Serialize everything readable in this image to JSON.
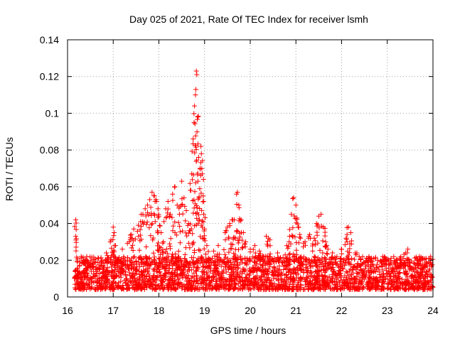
{
  "chart_data": {
    "type": "scatter",
    "title": "Day 025 of 2021, Rate Of TEC Index for receiver lsmh",
    "xlabel": "GPS time / hours",
    "ylabel": "ROTI / TECUs",
    "xlim": [
      16,
      24
    ],
    "ylim": [
      0,
      0.14
    ],
    "xticks": [
      16,
      17,
      18,
      19,
      20,
      21,
      22,
      23,
      24
    ],
    "xtick_labels": [
      "16",
      "17",
      "18",
      "19",
      "20",
      "21",
      "22",
      "23",
      "24"
    ],
    "yticks": [
      0,
      0.02,
      0.04,
      0.06,
      0.08,
      0.1,
      0.12,
      0.14
    ],
    "ytick_labels": [
      "0",
      "0.02",
      "0.04",
      "0.06",
      "0.08",
      "0.1",
      "0.12",
      "0.14"
    ],
    "grid": true,
    "marker": "+",
    "color": "#ff0000",
    "series": [
      {
        "name": "ROTI",
        "points": [
          [
            16.18,
            0.042
          ],
          [
            16.18,
            0.033
          ],
          [
            16.3,
            0.022
          ],
          [
            16.4,
            0.02
          ],
          [
            16.5,
            0.018
          ],
          [
            16.85,
            0.024
          ],
          [
            16.95,
            0.031
          ],
          [
            17.0,
            0.038
          ],
          [
            17.02,
            0.035
          ],
          [
            17.05,
            0.028
          ],
          [
            17.2,
            0.026
          ],
          [
            17.35,
            0.03
          ],
          [
            17.4,
            0.034
          ],
          [
            17.45,
            0.037
          ],
          [
            17.55,
            0.039
          ],
          [
            17.6,
            0.041
          ],
          [
            17.65,
            0.045
          ],
          [
            17.7,
            0.048
          ],
          [
            17.75,
            0.05
          ],
          [
            17.8,
            0.053
          ],
          [
            17.85,
            0.057
          ],
          [
            17.9,
            0.055
          ],
          [
            17.95,
            0.052
          ],
          [
            17.98,
            0.048
          ],
          [
            18.0,
            0.044
          ],
          [
            18.05,
            0.035
          ],
          [
            18.1,
            0.03
          ],
          [
            18.15,
            0.048
          ],
          [
            18.2,
            0.052
          ],
          [
            18.25,
            0.045
          ],
          [
            18.3,
            0.056
          ],
          [
            18.35,
            0.06
          ],
          [
            18.4,
            0.05
          ],
          [
            18.45,
            0.045
          ],
          [
            18.5,
            0.063
          ],
          [
            18.55,
            0.054
          ],
          [
            18.6,
            0.047
          ],
          [
            18.65,
            0.04
          ],
          [
            18.7,
            0.058
          ],
          [
            18.72,
            0.067
          ],
          [
            18.75,
            0.086
          ],
          [
            18.77,
            0.095
          ],
          [
            18.78,
            0.104
          ],
          [
            18.8,
            0.11
          ],
          [
            18.81,
            0.113
          ],
          [
            18.82,
            0.123
          ],
          [
            18.83,
            0.121
          ],
          [
            18.85,
            0.098
          ],
          [
            18.87,
            0.076
          ],
          [
            18.9,
            0.07
          ],
          [
            18.92,
            0.082
          ],
          [
            18.93,
            0.078
          ],
          [
            18.95,
            0.067
          ],
          [
            18.97,
            0.055
          ],
          [
            18.98,
            0.045
          ],
          [
            19.0,
            0.037
          ],
          [
            19.05,
            0.028
          ],
          [
            19.2,
            0.025
          ],
          [
            19.3,
            0.028
          ],
          [
            19.45,
            0.035
          ],
          [
            19.5,
            0.038
          ],
          [
            19.55,
            0.04
          ],
          [
            19.6,
            0.042
          ],
          [
            19.65,
            0.042
          ],
          [
            19.7,
            0.056
          ],
          [
            19.72,
            0.057
          ],
          [
            19.75,
            0.05
          ],
          [
            19.8,
            0.042
          ],
          [
            19.85,
            0.035
          ],
          [
            19.9,
            0.03
          ],
          [
            20.0,
            0.026
          ],
          [
            20.1,
            0.028
          ],
          [
            20.2,
            0.025
          ],
          [
            20.35,
            0.033
          ],
          [
            20.4,
            0.032
          ],
          [
            20.6,
            0.024
          ],
          [
            20.8,
            0.028
          ],
          [
            20.85,
            0.03
          ],
          [
            20.9,
            0.045
          ],
          [
            20.95,
            0.054
          ],
          [
            21.0,
            0.05
          ],
          [
            21.02,
            0.043
          ],
          [
            21.05,
            0.038
          ],
          [
            21.1,
            0.032
          ],
          [
            21.2,
            0.03
          ],
          [
            21.3,
            0.034
          ],
          [
            21.4,
            0.032
          ],
          [
            21.45,
            0.04
          ],
          [
            21.5,
            0.044
          ],
          [
            21.55,
            0.045
          ],
          [
            21.6,
            0.038
          ],
          [
            21.65,
            0.03
          ],
          [
            21.7,
            0.026
          ],
          [
            21.8,
            0.024
          ],
          [
            22.0,
            0.026
          ],
          [
            22.1,
            0.032
          ],
          [
            22.15,
            0.038
          ],
          [
            22.2,
            0.035
          ],
          [
            22.3,
            0.024
          ],
          [
            22.6,
            0.022
          ],
          [
            22.9,
            0.022
          ],
          [
            23.2,
            0.02
          ],
          [
            23.4,
            0.024
          ],
          [
            23.45,
            0.026
          ],
          [
            23.7,
            0.022
          ],
          [
            23.85,
            0.021
          ],
          [
            23.95,
            0.022
          ]
        ],
        "baseline_band": {
          "x_range": [
            16.15,
            24.0
          ],
          "y_range": [
            0.004,
            0.022
          ],
          "note": "dense cloud of points across full time range"
        }
      }
    ]
  }
}
